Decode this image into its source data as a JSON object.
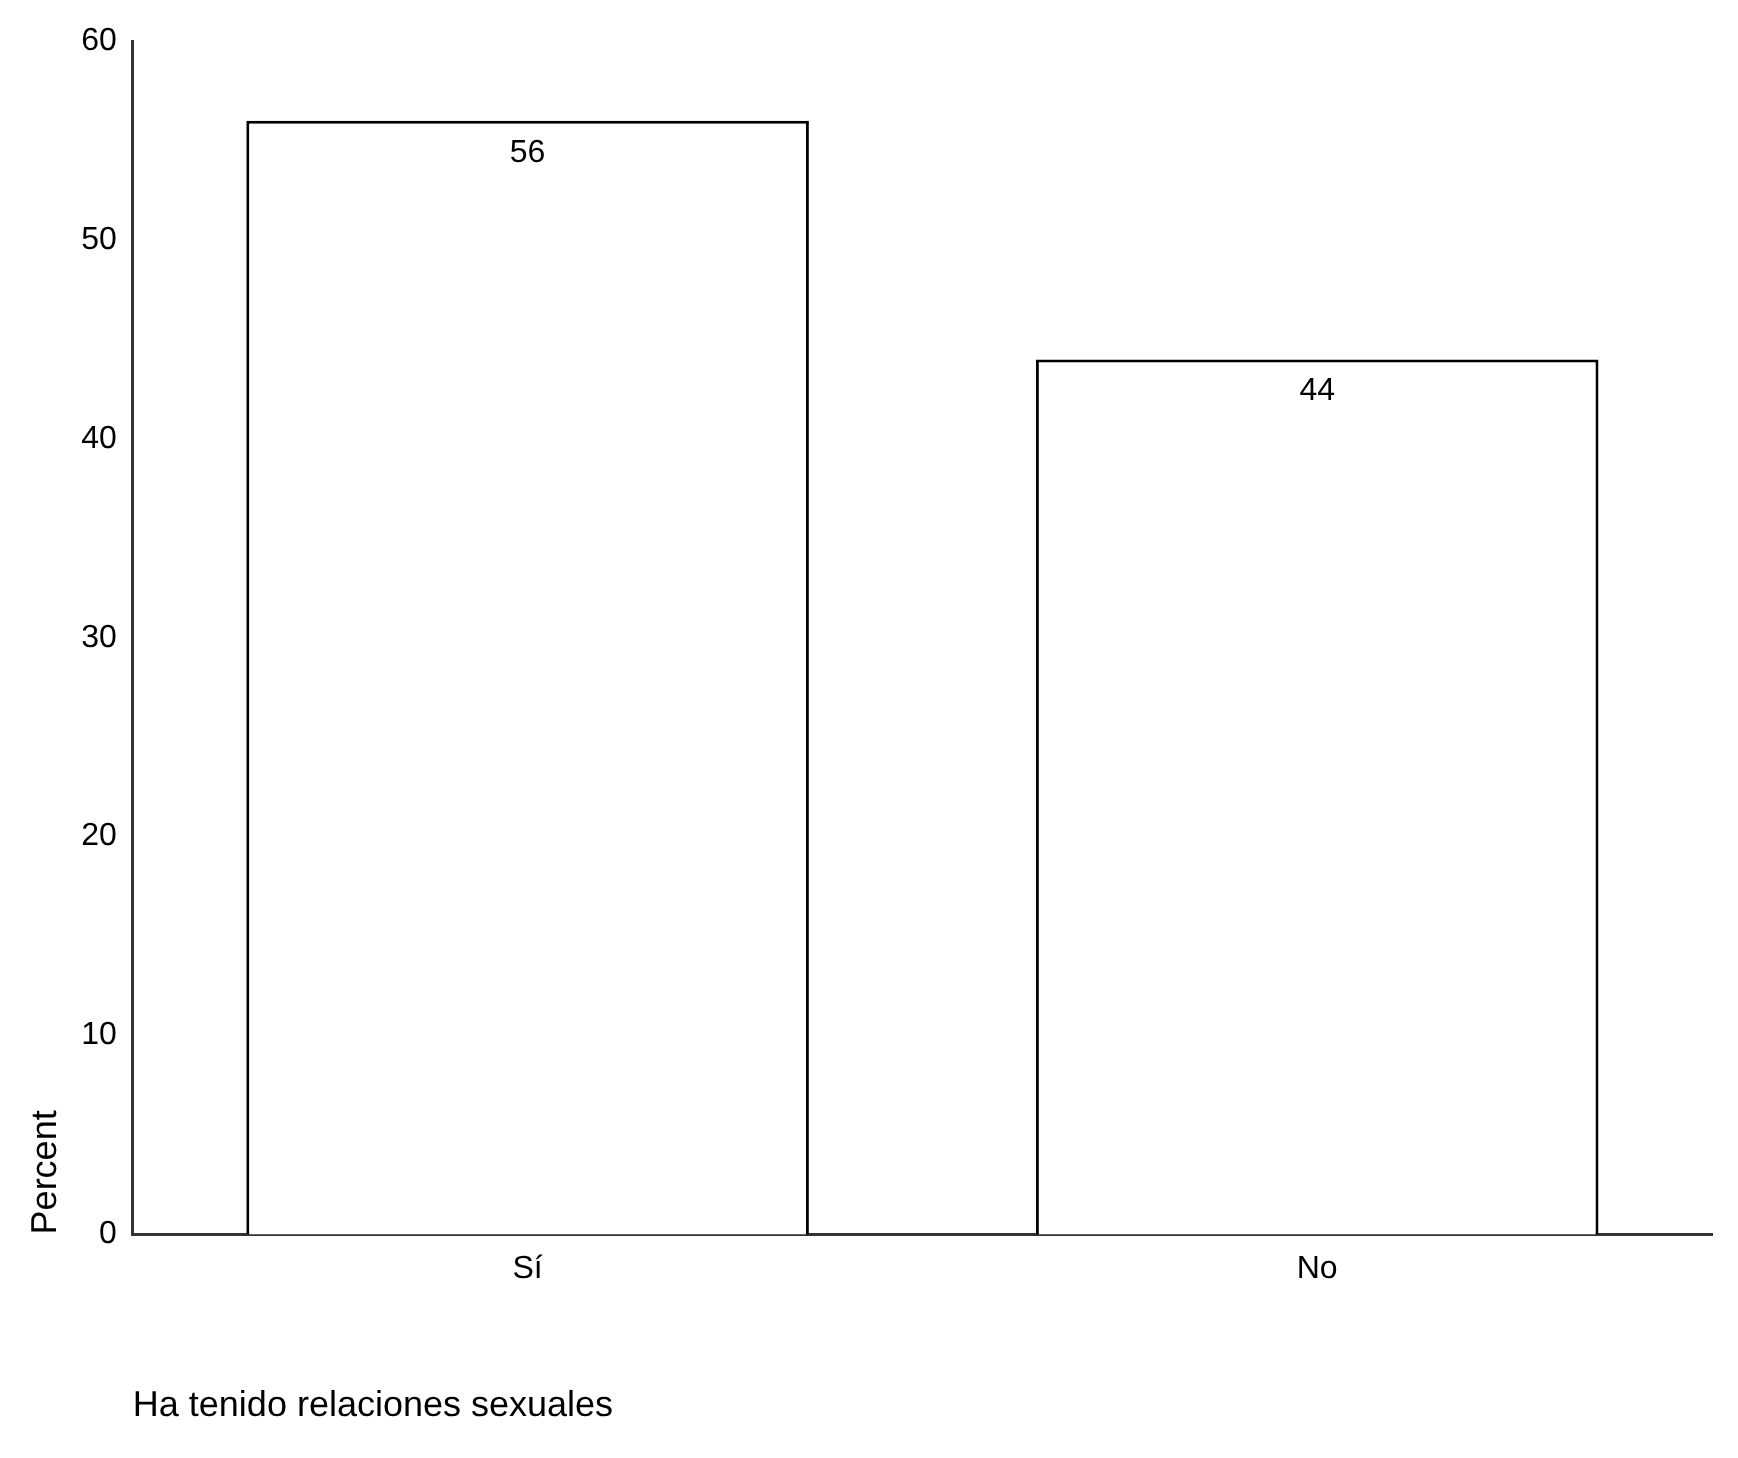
{
  "chart_data": {
    "type": "bar",
    "xlabel": "Ha tenido relaciones sexuales",
    "ylabel": "Percent",
    "categories": [
      "Sí",
      "No"
    ],
    "values": [
      56,
      44
    ],
    "color": "#ffffff",
    "ylim": [
      0,
      60
    ],
    "yticks": [
      0,
      10,
      20,
      30,
      40,
      50,
      60
    ],
    "grid": false,
    "legend": false,
    "data_labels": true
  }
}
